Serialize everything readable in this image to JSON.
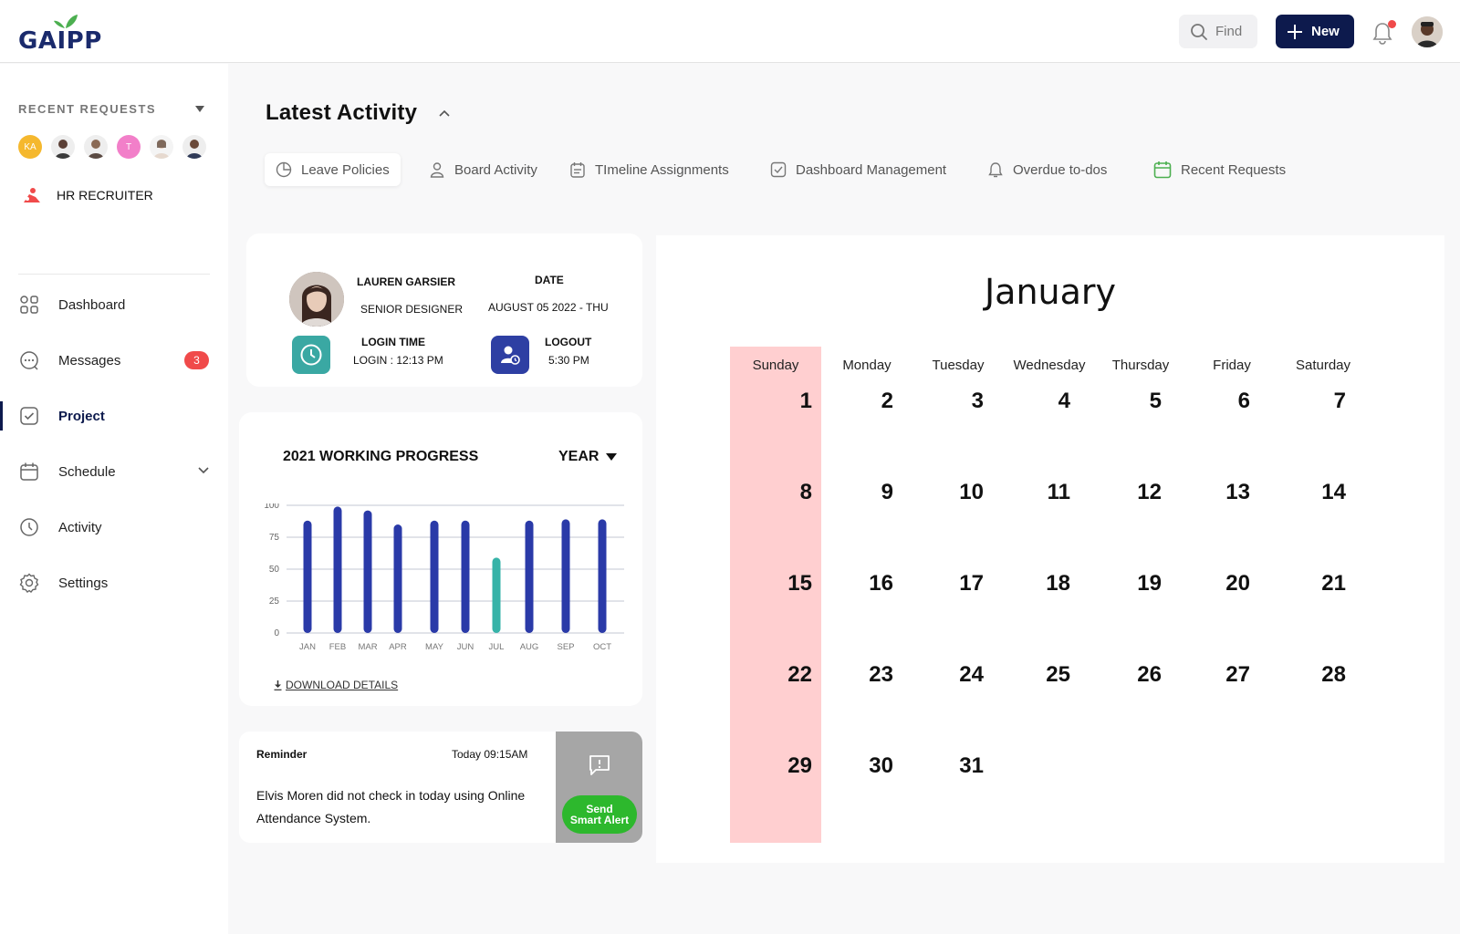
{
  "brand": {
    "name": "GAIPP",
    "leaf_color": "#4caf50",
    "text_color": "#1a2a6c"
  },
  "topbar": {
    "find_label": "Find",
    "new_label": "New",
    "accent": "#0d1a4d",
    "notification_dot": true
  },
  "sidebar": {
    "recent_title": "RECENT REQUESTS",
    "recent_avatars": [
      {
        "initials": "KA",
        "color": "#f5b82e"
      },
      {
        "initials": "",
        "color": "#3b3b3b"
      },
      {
        "initials": "",
        "color": "#5a4a42"
      },
      {
        "initials": "T",
        "color": "#f27fc9"
      },
      {
        "initials": "",
        "color": "#e6d9cf"
      },
      {
        "initials": "",
        "color": "#2f3a57"
      }
    ],
    "hr_label": "HR RECRUITER",
    "items": [
      {
        "label": "Dashboard",
        "icon": "grid-icon"
      },
      {
        "label": "Messages",
        "icon": "chat-icon",
        "badge": "3"
      },
      {
        "label": "Project",
        "icon": "checkbox-icon",
        "active": true
      },
      {
        "label": "Schedule",
        "icon": "calendar-icon",
        "expandable": true
      },
      {
        "label": "Activity",
        "icon": "clock-icon"
      },
      {
        "label": "Settings",
        "icon": "gear-icon"
      }
    ]
  },
  "header": {
    "title": "Latest Activity",
    "tabs": [
      {
        "label": "Leave Policies",
        "icon": "pie-icon",
        "selected": true
      },
      {
        "label": "Board Activity",
        "icon": "user-icon"
      },
      {
        "label": "TImeline Assignments",
        "icon": "clipboard-icon"
      },
      {
        "label": "Dashboard Management",
        "icon": "check-square-icon"
      },
      {
        "label": "Overdue to-dos",
        "icon": "bell-icon"
      },
      {
        "label": "Recent Requests",
        "icon": "calendar-green-icon"
      }
    ]
  },
  "profile": {
    "name": "LAUREN GARSIER",
    "role": "SENIOR DESIGNER",
    "date_label": "DATE",
    "date_value": "AUGUST 05 2022 - THU",
    "login_label": "LOGIN TIME",
    "login_value": "LOGIN : 12:13 PM",
    "logout_label": "LOGOUT",
    "logout_value": "5:30 PM",
    "login_icon_color": "#3aa8a3",
    "logout_icon_color": "#2e3fa3"
  },
  "progress": {
    "title": "2021 WORKING PROGRESS",
    "period": "YEAR",
    "download": "DOWNLOAD DETAILS"
  },
  "chart_data": {
    "type": "bar",
    "categories": [
      "JAN",
      "FEB",
      "MAR",
      "APR",
      "MAY",
      "JUN",
      "JUL",
      "AUG",
      "SEP",
      "OCT"
    ],
    "values": [
      88,
      99,
      96,
      85,
      88,
      88,
      59,
      88,
      89,
      89
    ],
    "yticks": [
      0,
      25,
      50,
      75,
      100
    ],
    "ylim": [
      0,
      100
    ],
    "bar_color": "#2a3aa8",
    "highlight_color": "#36b3a8",
    "highlight_index": 6,
    "grid": true
  },
  "reminder": {
    "title": "Reminder",
    "time": "Today 09:15AM",
    "body": "Elvis Moren did not check in today using Online Attendance System.",
    "alert_line1": "Send",
    "alert_line2": "Smart Alert"
  },
  "calendar": {
    "month": "January",
    "weekdays": [
      "Sunday",
      "Monday",
      "Tuesday",
      "Wednesday",
      "Thursday",
      "Friday",
      "Saturday"
    ],
    "days": [
      "1",
      "2",
      "3",
      "4",
      "5",
      "6",
      "7",
      "8",
      "9",
      "10",
      "11",
      "12",
      "13",
      "14",
      "15",
      "16",
      "17",
      "18",
      "19",
      "20",
      "21",
      "22",
      "23",
      "24",
      "25",
      "26",
      "27",
      "28",
      "29",
      "30",
      "31"
    ],
    "sunday_highlight": "#ffcfd0"
  }
}
